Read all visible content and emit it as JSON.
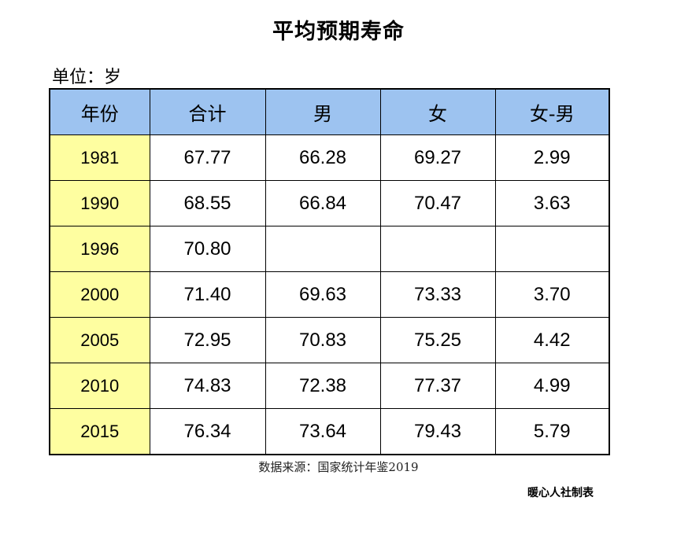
{
  "title": "平均预期寿命",
  "unit_label": "单位：岁",
  "table": {
    "headers": [
      "年份",
      "合计",
      "男",
      "女",
      "女-男"
    ],
    "rows": [
      [
        "1981",
        "67.77",
        "66.28",
        "69.27",
        "2.99"
      ],
      [
        "1990",
        "68.55",
        "66.84",
        "70.47",
        "3.63"
      ],
      [
        "1996",
        "70.80",
        "",
        "",
        ""
      ],
      [
        "2000",
        "71.40",
        "69.63",
        "73.33",
        "3.70"
      ],
      [
        "2005",
        "72.95",
        "70.83",
        "75.25",
        "4.42"
      ],
      [
        "2010",
        "74.83",
        "72.38",
        "77.37",
        "4.99"
      ],
      [
        "2015",
        "76.34",
        "73.64",
        "79.43",
        "5.79"
      ]
    ]
  },
  "source": "数据来源：国家统计年鉴2019",
  "maker": "暖心人社制表",
  "colors": {
    "header_bg": "#9dc3f0",
    "year_bg": "#fefea0"
  }
}
